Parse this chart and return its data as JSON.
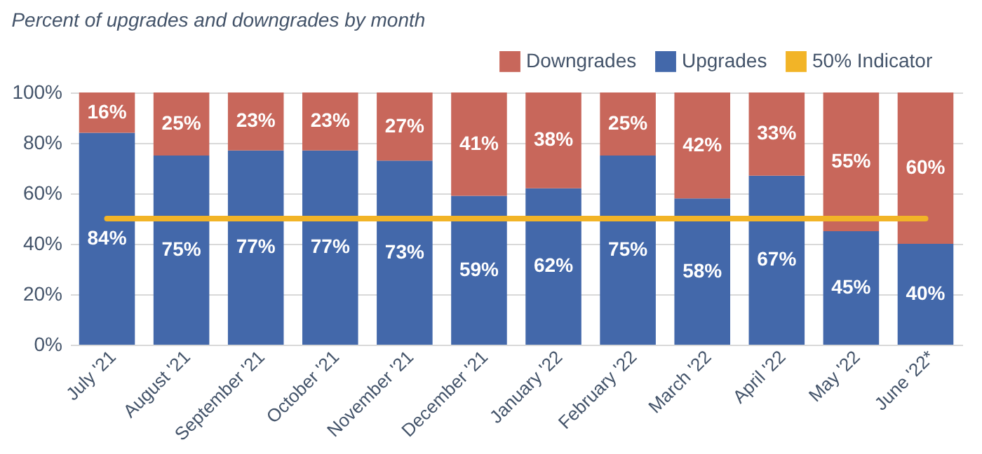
{
  "chart_data": {
    "type": "bar",
    "title": "Percent of upgrades and downgrades by month",
    "categories": [
      "July '21",
      "August '21",
      "September '21",
      "October '21",
      "November '21",
      "December '21",
      "January '22",
      "February '22",
      "March '22",
      "April '22",
      "May '22",
      "June '22*"
    ],
    "stacked": true,
    "series": [
      {
        "name": "Upgrades",
        "color": "#4368aa",
        "values": [
          84,
          75,
          77,
          77,
          73,
          59,
          62,
          75,
          58,
          67,
          45,
          40
        ],
        "value_labels": [
          "84%",
          "75%",
          "77%",
          "77%",
          "73%",
          "59%",
          "62%",
          "75%",
          "58%",
          "67%",
          "45%",
          "40%"
        ]
      },
      {
        "name": "Downgrades",
        "color": "#c8675b",
        "values": [
          16,
          25,
          23,
          23,
          27,
          41,
          38,
          25,
          42,
          33,
          55,
          60
        ],
        "value_labels": [
          "16%",
          "25%",
          "23%",
          "23%",
          "27%",
          "41%",
          "38%",
          "25%",
          "42%",
          "33%",
          "55%",
          "60%"
        ]
      },
      {
        "name": "50% Indicator",
        "type": "line",
        "color": "#f2b427",
        "values": [
          50,
          50,
          50,
          50,
          50,
          50,
          50,
          50,
          50,
          50,
          50,
          50
        ]
      }
    ],
    "ylim": [
      0,
      100
    ],
    "yticks": [
      {
        "value": 0,
        "label": "0%"
      },
      {
        "value": 20,
        "label": "20%"
      },
      {
        "value": 40,
        "label": "40%"
      },
      {
        "value": 60,
        "label": "60%"
      },
      {
        "value": 80,
        "label": "80%"
      },
      {
        "value": 100,
        "label": "100%"
      }
    ],
    "grid": "y",
    "legend": "top right"
  }
}
